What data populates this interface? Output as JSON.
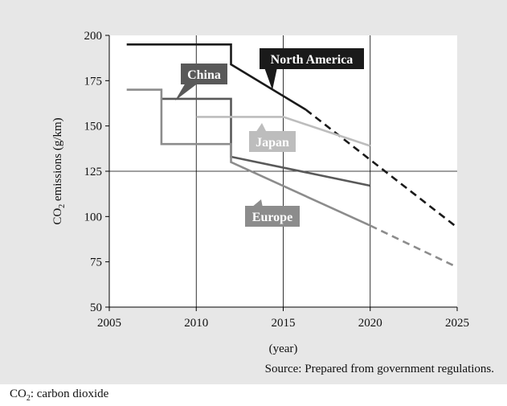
{
  "chart_data": {
    "type": "line",
    "xlabel": "(year)",
    "ylabel": {
      "prefix": "CO",
      "subscript": "2",
      "suffix": " emissions (g/km)"
    },
    "xlim": [
      2005,
      2025
    ],
    "ylim": [
      50,
      200
    ],
    "x_ticks": [
      2005,
      2010,
      2015,
      2020,
      2025
    ],
    "y_ticks": [
      50,
      75,
      100,
      125,
      150,
      175,
      200
    ],
    "grid": {
      "x": [
        2010,
        2015,
        2020
      ],
      "y": [
        125
      ]
    },
    "series": [
      {
        "name": "North America",
        "color": "#1a1a1a",
        "solid": [
          [
            2006,
            195
          ],
          [
            2012,
            195
          ],
          [
            2012,
            184
          ],
          [
            2016.3,
            159
          ]
        ],
        "dashed": [
          [
            2016.3,
            159
          ],
          [
            2025,
            94
          ]
        ]
      },
      {
        "name": "China",
        "color": "#595959",
        "solid": [
          [
            2008,
            165
          ],
          [
            2012,
            165
          ],
          [
            2012,
            133
          ],
          [
            2020,
            117
          ]
        ],
        "dashed": []
      },
      {
        "name": "Japan",
        "color": "#bdbdbd",
        "solid": [
          [
            2010,
            155
          ],
          [
            2015,
            155
          ],
          [
            2020,
            139
          ]
        ],
        "dashed": []
      },
      {
        "name": "Europe",
        "color": "#8c8c8c",
        "solid": [
          [
            2006,
            170
          ],
          [
            2008,
            170
          ],
          [
            2008,
            140
          ],
          [
            2012,
            140
          ],
          [
            2012,
            130
          ],
          [
            2020,
            95
          ]
        ],
        "dashed": [
          [
            2020,
            95
          ],
          [
            2025,
            72
          ]
        ]
      }
    ]
  },
  "source_text": "Source: Prepared from government regulations.",
  "footnote": {
    "prefix": "CO",
    "subscript": "2",
    "suffix": ": carbon dioxide"
  }
}
